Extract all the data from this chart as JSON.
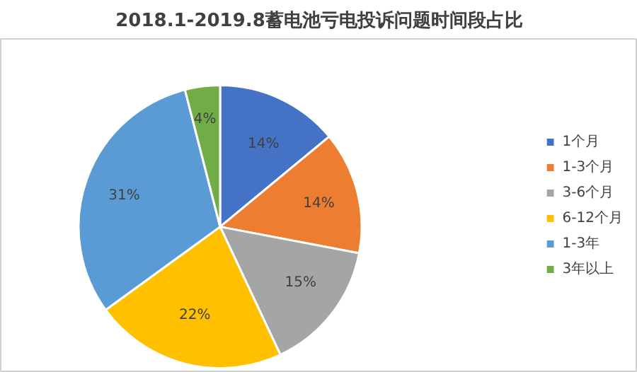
{
  "chart_data": {
    "type": "pie",
    "title": "2018.1-2019.8蓄电池亏电投诉问题时间段占比",
    "categories": [
      "1个月",
      "1-3个月",
      "3-6个月",
      "6-12个月",
      "1-3年",
      "3年以上"
    ],
    "values": [
      14,
      14,
      15,
      22,
      31,
      4
    ],
    "colors": [
      "#4472c4",
      "#ed7d31",
      "#a5a5a5",
      "#ffc000",
      "#5b9bd5",
      "#70ad47"
    ],
    "value_labels": [
      "14%",
      "14%",
      "15%",
      "22%",
      "31%",
      "4%"
    ],
    "legend": "right"
  }
}
